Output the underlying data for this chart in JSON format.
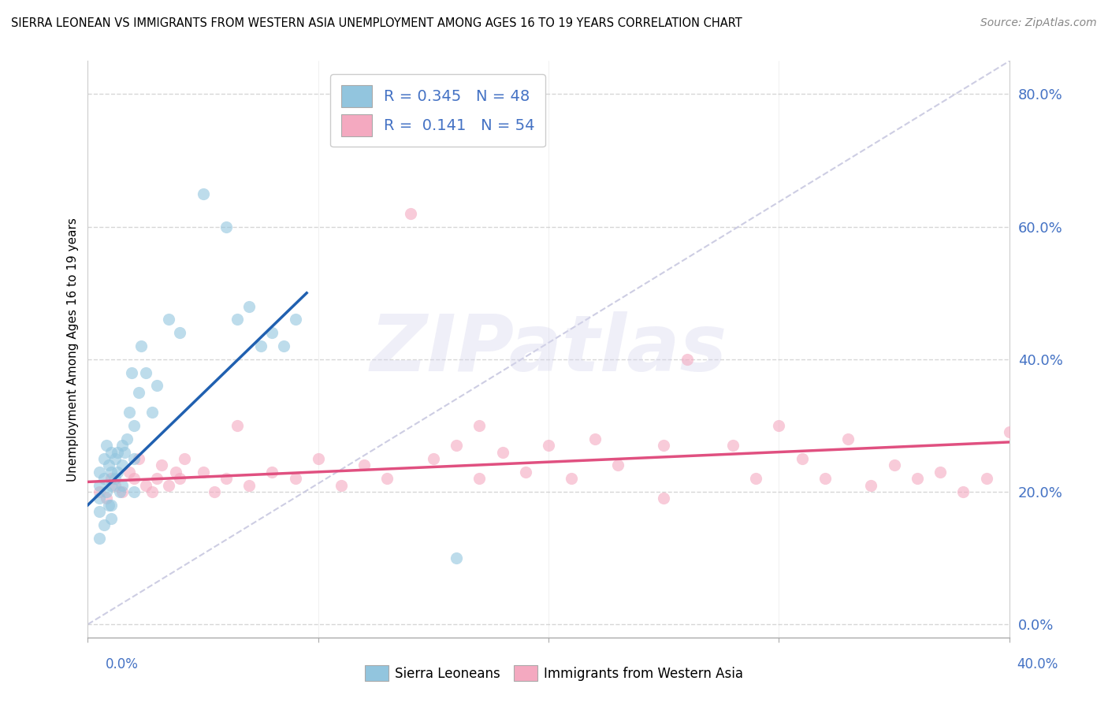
{
  "title": "SIERRA LEONEAN VS IMMIGRANTS FROM WESTERN ASIA UNEMPLOYMENT AMONG AGES 16 TO 19 YEARS CORRELATION CHART",
  "source": "Source: ZipAtlas.com",
  "ylabel": "Unemployment Among Ages 16 to 19 years",
  "color_blue": "#92c5de",
  "color_pink": "#f4a9c0",
  "color_blue_line": "#2060b0",
  "color_pink_line": "#e05080",
  "color_diag": "#c8c8e0",
  "watermark_zip": "ZIP",
  "watermark_atlas": "atlas",
  "xlim": [
    0.0,
    0.4
  ],
  "ylim": [
    -0.02,
    0.85
  ],
  "ytick_values": [
    0.0,
    0.2,
    0.4,
    0.6,
    0.8
  ],
  "ytick_labels": [
    "0.0%",
    "20.0%",
    "40.0%",
    "60.0%",
    "80.0%"
  ],
  "legend_entries": [
    "R = 0.345   N = 48",
    "R =  0.141   N = 54"
  ],
  "bottom_legend": [
    "Sierra Leoneans",
    "Immigrants from Western Asia"
  ],
  "sierra_x": [
    0.005,
    0.005,
    0.005,
    0.005,
    0.005,
    0.007,
    0.007,
    0.007,
    0.008,
    0.008,
    0.009,
    0.009,
    0.01,
    0.01,
    0.01,
    0.01,
    0.01,
    0.012,
    0.012,
    0.013,
    0.013,
    0.014,
    0.015,
    0.015,
    0.015,
    0.016,
    0.017,
    0.018,
    0.019,
    0.02,
    0.02,
    0.02,
    0.022,
    0.023,
    0.025,
    0.028,
    0.03,
    0.035,
    0.04,
    0.05,
    0.06,
    0.065,
    0.07,
    0.075,
    0.08,
    0.085,
    0.09,
    0.16
  ],
  "sierra_y": [
    0.23,
    0.21,
    0.19,
    0.17,
    0.13,
    0.25,
    0.22,
    0.15,
    0.27,
    0.2,
    0.24,
    0.18,
    0.26,
    0.23,
    0.21,
    0.18,
    0.16,
    0.25,
    0.22,
    0.26,
    0.23,
    0.2,
    0.27,
    0.24,
    0.21,
    0.26,
    0.28,
    0.32,
    0.38,
    0.3,
    0.25,
    0.2,
    0.35,
    0.42,
    0.38,
    0.32,
    0.36,
    0.46,
    0.44,
    0.65,
    0.6,
    0.46,
    0.48,
    0.42,
    0.44,
    0.42,
    0.46,
    0.1
  ],
  "western_x": [
    0.005,
    0.008,
    0.01,
    0.012,
    0.015,
    0.018,
    0.02,
    0.022,
    0.025,
    0.028,
    0.03,
    0.032,
    0.035,
    0.038,
    0.04,
    0.042,
    0.05,
    0.055,
    0.06,
    0.065,
    0.07,
    0.08,
    0.09,
    0.1,
    0.11,
    0.12,
    0.13,
    0.14,
    0.15,
    0.16,
    0.17,
    0.18,
    0.19,
    0.2,
    0.21,
    0.22,
    0.23,
    0.25,
    0.26,
    0.28,
    0.29,
    0.3,
    0.31,
    0.32,
    0.33,
    0.34,
    0.35,
    0.36,
    0.37,
    0.38,
    0.39,
    0.4,
    0.17,
    0.25
  ],
  "western_y": [
    0.2,
    0.19,
    0.22,
    0.21,
    0.2,
    0.23,
    0.22,
    0.25,
    0.21,
    0.2,
    0.22,
    0.24,
    0.21,
    0.23,
    0.22,
    0.25,
    0.23,
    0.2,
    0.22,
    0.3,
    0.21,
    0.23,
    0.22,
    0.25,
    0.21,
    0.24,
    0.22,
    0.62,
    0.25,
    0.27,
    0.22,
    0.26,
    0.23,
    0.27,
    0.22,
    0.28,
    0.24,
    0.27,
    0.4,
    0.27,
    0.22,
    0.3,
    0.25,
    0.22,
    0.28,
    0.21,
    0.24,
    0.22,
    0.23,
    0.2,
    0.22,
    0.29,
    0.3,
    0.19
  ],
  "sl_line_x": [
    0.0,
    0.095
  ],
  "sl_line_y": [
    0.18,
    0.5
  ],
  "wa_line_x": [
    0.0,
    0.4
  ],
  "wa_line_y": [
    0.215,
    0.275
  ]
}
